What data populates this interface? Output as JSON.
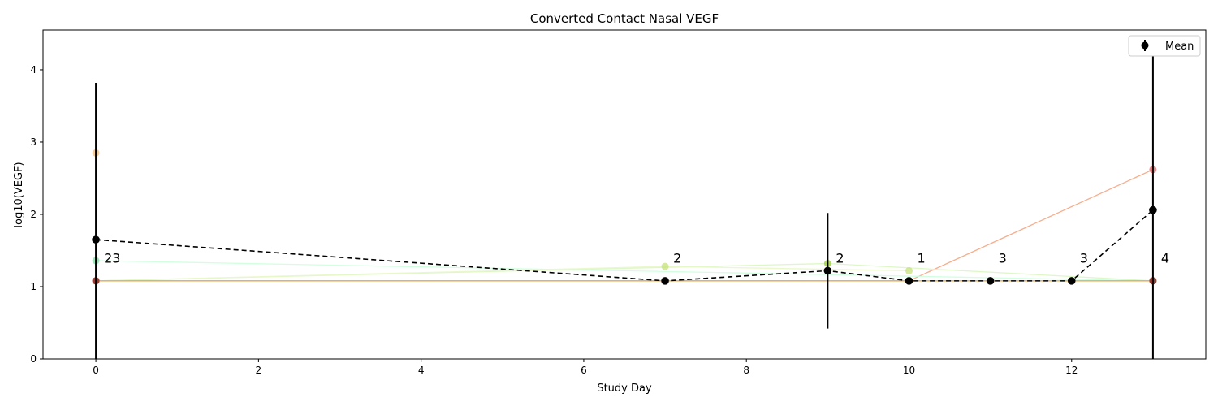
{
  "chart_data": {
    "type": "line",
    "title": "Converted Contact Nasal VEGF",
    "xlabel": "Study Day",
    "ylabel": "log10(VEGF)",
    "xlim": [
      -0.65,
      13.65
    ],
    "ylim": [
      0,
      4.55
    ],
    "xticks": [
      0,
      2,
      4,
      6,
      8,
      10,
      12
    ],
    "yticks": [
      0,
      1,
      2,
      3,
      4
    ],
    "legend": {
      "position": "top-right",
      "entries": [
        "Mean"
      ]
    },
    "mean": {
      "name": "Mean",
      "points": [
        {
          "x": 0,
          "y": 1.65,
          "err_low": 0,
          "err_high": 3.82
        },
        {
          "x": 7,
          "y": 1.08,
          "err_low": 1.08,
          "err_high": 1.08
        },
        {
          "x": 9,
          "y": 1.22,
          "err_low": 0.42,
          "err_high": 2.02
        },
        {
          "x": 10,
          "y": 1.08,
          "err_low": 1.08,
          "err_high": 1.08
        },
        {
          "x": 11,
          "y": 1.08,
          "err_low": 1.08,
          "err_high": 1.08
        },
        {
          "x": 12,
          "y": 1.08,
          "err_low": 1.08,
          "err_high": 1.08
        },
        {
          "x": 13,
          "y": 2.06,
          "err_low": 0,
          "err_high": 4.36
        }
      ]
    },
    "counts": [
      {
        "x": 0,
        "label": "23"
      },
      {
        "x": 7,
        "label": "2"
      },
      {
        "x": 9,
        "label": "2"
      },
      {
        "x": 10,
        "label": "1"
      },
      {
        "x": 11,
        "label": "3"
      },
      {
        "x": 12,
        "label": "3"
      },
      {
        "x": 13,
        "label": "4"
      }
    ],
    "subjects": [
      {
        "color": "#f4a582",
        "x": [
          0,
          10,
          13
        ],
        "y": [
          1.08,
          1.08,
          2.62
        ],
        "marker": "#e06666"
      },
      {
        "color": "#ccffdd",
        "x": [
          0,
          13
        ],
        "y": [
          1.36,
          1.08
        ],
        "marker": "#88ddaa"
      },
      {
        "color": "#d9f7c0",
        "x": [
          0,
          9,
          13
        ],
        "y": [
          1.08,
          1.32,
          1.08
        ],
        "marker": "#9acd32"
      },
      {
        "color": "#e8f7c8",
        "x": [
          0,
          7,
          10
        ],
        "y": [
          1.08,
          1.28,
          1.22
        ],
        "marker": "#c5e17a"
      },
      {
        "color": "#c8c8c8",
        "x": [
          0,
          13
        ],
        "y": [
          1.08,
          1.08
        ],
        "marker": "#aaaaaa"
      },
      {
        "color": "#e6a03c",
        "x": [
          0,
          13
        ],
        "y": [
          1.08,
          1.08
        ],
        "marker": "#8b1a1a"
      },
      {
        "color": "#f0c080",
        "x": [
          0
        ],
        "y": [
          2.85
        ],
        "marker": "#f0c080"
      }
    ]
  }
}
